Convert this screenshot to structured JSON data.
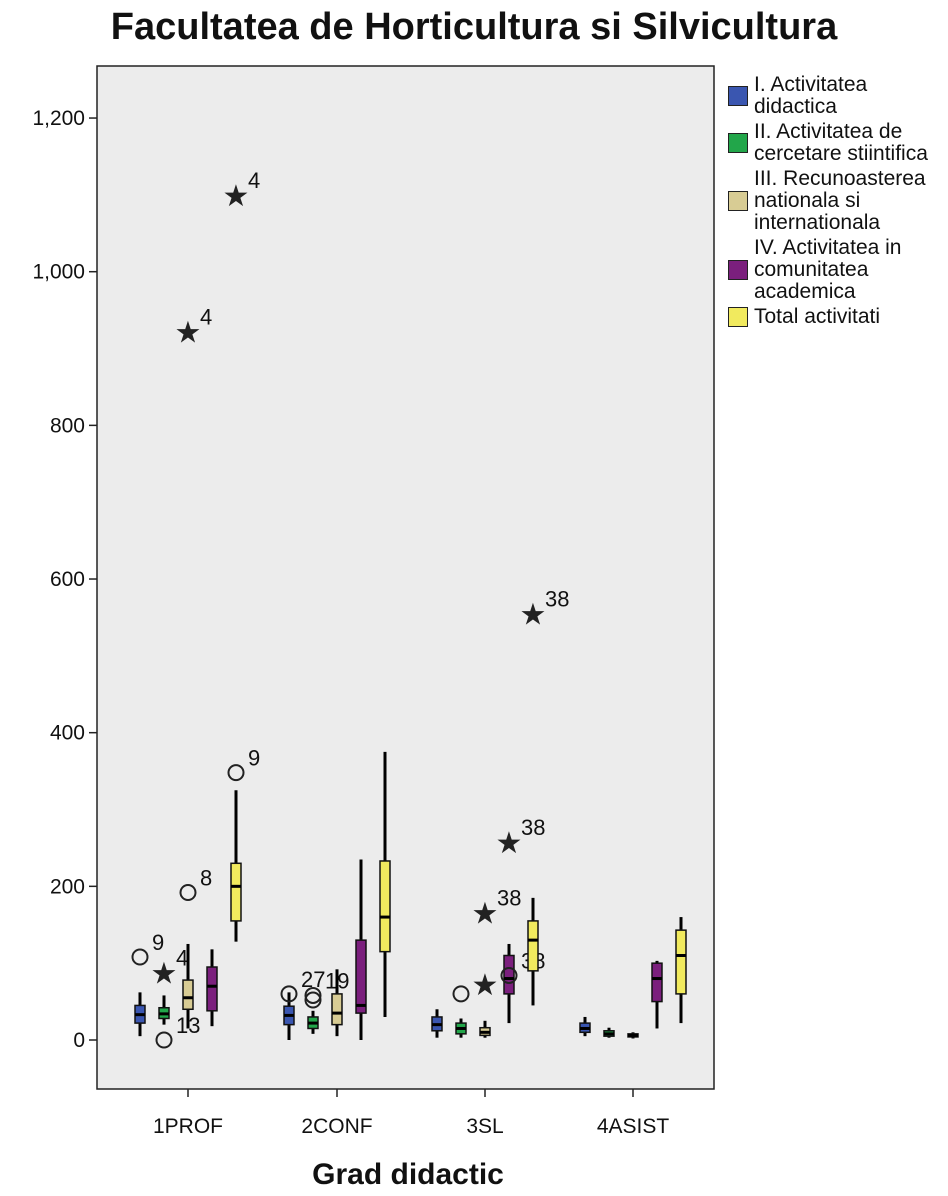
{
  "chart_data": {
    "type": "boxplot",
    "title": "Facultatea de Horticultura si Silvicultura",
    "xlabel": "Grad didactic",
    "ylabel": "",
    "ylim": [
      -65,
      1265
    ],
    "yticks": [
      0,
      200,
      400,
      600,
      800,
      1000,
      1200
    ],
    "ytick_labels": [
      "0",
      "200",
      "400",
      "600",
      "800",
      "1,000",
      "1,200"
    ],
    "categories": [
      "1PROF",
      "2CONF",
      "3SL",
      "4ASIST"
    ],
    "legend_position": "right",
    "plot_background": "#ececec",
    "series": [
      {
        "name": "I. Activitatea didactica",
        "color": "#3a56b0",
        "boxes": [
          {
            "min": 5,
            "q1": 22,
            "median": 33,
            "q3": 45,
            "max": 62,
            "outliers": [
              {
                "y": 108,
                "marker": "circle",
                "label": "9"
              }
            ]
          },
          {
            "min": 0,
            "q1": 20,
            "median": 32,
            "q3": 44,
            "max": 62,
            "outliers": [
              {
                "y": 60,
                "marker": "circle",
                "label": "27"
              }
            ]
          },
          {
            "min": 3,
            "q1": 12,
            "median": 20,
            "q3": 30,
            "max": 40,
            "outliers": []
          },
          {
            "min": 5,
            "q1": 10,
            "median": 15,
            "q3": 22,
            "max": 30,
            "outliers": []
          }
        ]
      },
      {
        "name": "II. Activitatea de cercetare stiintifica",
        "color": "#22a64a",
        "boxes": [
          {
            "min": 20,
            "q1": 28,
            "median": 34,
            "q3": 42,
            "max": 58,
            "outliers": [
              {
                "y": 88,
                "marker": "star",
                "label": "4"
              },
              {
                "y": 0,
                "marker": "circle",
                "label": "13"
              }
            ]
          },
          {
            "min": 8,
            "q1": 15,
            "median": 22,
            "q3": 30,
            "max": 38,
            "outliers": [
              {
                "y": 58,
                "marker": "circle",
                "label": "19"
              },
              {
                "y": 52,
                "marker": "circle",
                "label": ""
              }
            ]
          },
          {
            "min": 3,
            "q1": 8,
            "median": 15,
            "q3": 22,
            "max": 28,
            "outliers": [
              {
                "y": 60,
                "marker": "circle",
                "label": ""
              }
            ]
          },
          {
            "min": 3,
            "q1": 5,
            "median": 8,
            "q3": 12,
            "max": 16,
            "outliers": []
          }
        ]
      },
      {
        "name": "III. Recunoasterea nationala si internationala",
        "color": "#d8cc94",
        "boxes": [
          {
            "min": 15,
            "q1": 40,
            "median": 55,
            "q3": 78,
            "max": 125,
            "outliers": [
              {
                "y": 922,
                "marker": "star",
                "label": "4"
              },
              {
                "y": 192,
                "marker": "circle",
                "label": "8"
              }
            ]
          },
          {
            "min": 5,
            "q1": 20,
            "median": 35,
            "q3": 60,
            "max": 92,
            "outliers": []
          },
          {
            "min": 3,
            "q1": 6,
            "median": 10,
            "q3": 16,
            "max": 25,
            "outliers": [
              {
                "y": 166,
                "marker": "star",
                "label": "38"
              },
              {
                "y": 73,
                "marker": "star",
                "label": ""
              }
            ]
          },
          {
            "min": 2,
            "q1": 4,
            "median": 6,
            "q3": 8,
            "max": 10,
            "outliers": []
          }
        ]
      },
      {
        "name": "IV. Activitatea in comunitatea academica",
        "color": "#7b1f7d",
        "boxes": [
          {
            "min": 18,
            "q1": 38,
            "median": 70,
            "q3": 95,
            "max": 118,
            "outliers": []
          },
          {
            "min": 0,
            "q1": 35,
            "median": 45,
            "q3": 130,
            "max": 235,
            "outliers": []
          },
          {
            "min": 22,
            "q1": 60,
            "median": 80,
            "q3": 110,
            "max": 125,
            "outliers": [
              {
                "y": 258,
                "marker": "star",
                "label": "38"
              },
              {
                "y": 84,
                "marker": "circle",
                "label": "38"
              }
            ]
          },
          {
            "min": 15,
            "q1": 50,
            "median": 80,
            "q3": 100,
            "max": 103,
            "outliers": []
          }
        ]
      },
      {
        "name": "Total activitati",
        "color": "#f1ea5e",
        "boxes": [
          {
            "min": 128,
            "q1": 155,
            "median": 200,
            "q3": 230,
            "max": 325,
            "outliers": [
              {
                "y": 1100,
                "marker": "star",
                "label": "4"
              },
              {
                "y": 348,
                "marker": "circle",
                "label": "9"
              }
            ]
          },
          {
            "min": 30,
            "q1": 115,
            "median": 160,
            "q3": 233,
            "max": 375,
            "outliers": []
          },
          {
            "min": 45,
            "q1": 90,
            "median": 130,
            "q3": 155,
            "max": 185,
            "outliers": [
              {
                "y": 555,
                "marker": "star",
                "label": "38"
              }
            ]
          },
          {
            "min": 22,
            "q1": 60,
            "median": 110,
            "q3": 143,
            "max": 160,
            "outliers": []
          }
        ]
      }
    ]
  }
}
